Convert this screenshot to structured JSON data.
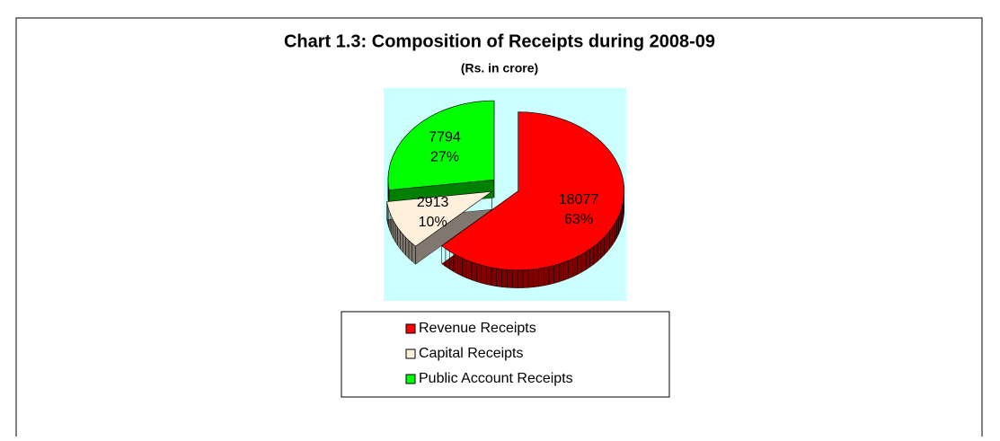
{
  "chart_data": {
    "type": "pie",
    "title": "Chart 1.3: Composition of Receipts during 2008-09",
    "subtitle": "(Rs. in crore)",
    "categories": [
      "Revenue Receipts",
      "Capital Receipts",
      "Public Account Receipts"
    ],
    "values": [
      18077,
      2913,
      7794
    ],
    "percent_labels": [
      "63%",
      "10%",
      "27%"
    ],
    "colors": [
      "#ff0000",
      "#fff0dc",
      "#00ff00"
    ],
    "legend": "bottom"
  }
}
